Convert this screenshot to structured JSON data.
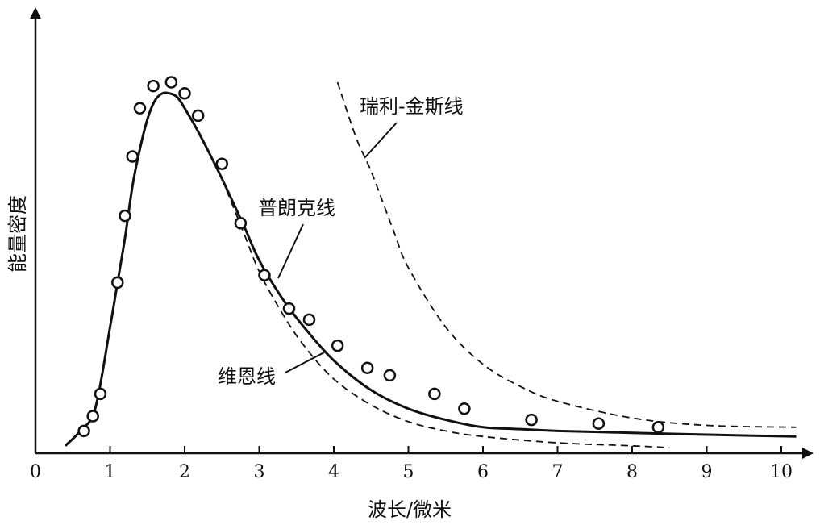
{
  "chart_data": {
    "type": "line",
    "xlabel": "波长/微米",
    "ylabel": "能量密度",
    "xlim": [
      0,
      10.5
    ],
    "ylim": [
      0,
      1.05
    ],
    "x_ticks": [
      "0",
      "1",
      "2",
      "3",
      "4",
      "5",
      "6",
      "7",
      "8",
      "9",
      "10"
    ],
    "grid": false,
    "legend": "none",
    "annotations": [
      {
        "text": "瑞利-金斯线",
        "target_series": 2
      },
      {
        "text": "普朗克线",
        "target_series": 0
      },
      {
        "text": "维恩线",
        "target_series": 1
      }
    ],
    "series": [
      {
        "name": "普朗克线",
        "style": "solid",
        "x": [
          0.4,
          0.6,
          0.8,
          1.0,
          1.1,
          1.2,
          1.3,
          1.4,
          1.5,
          1.6,
          1.7,
          1.8,
          1.9,
          2.0,
          2.2,
          2.5,
          2.8,
          3.0,
          3.3,
          3.6,
          4.0,
          4.5,
          5.0,
          5.5,
          6.0,
          6.5,
          7.0,
          8.0,
          9.0,
          10.2
        ],
        "y": [
          0.02,
          0.06,
          0.12,
          0.34,
          0.46,
          0.58,
          0.72,
          0.82,
          0.9,
          0.95,
          0.97,
          0.97,
          0.96,
          0.93,
          0.86,
          0.74,
          0.61,
          0.52,
          0.42,
          0.34,
          0.25,
          0.17,
          0.12,
          0.09,
          0.07,
          0.065,
          0.06,
          0.055,
          0.05,
          0.045
        ]
      },
      {
        "name": "维恩线",
        "style": "dashed",
        "x": [
          2.5,
          2.8,
          3.0,
          3.3,
          3.6,
          4.0,
          4.5,
          5.0,
          5.5,
          6.0,
          7.0,
          8.0,
          8.5
        ],
        "y": [
          0.74,
          0.59,
          0.49,
          0.38,
          0.29,
          0.2,
          0.13,
          0.085,
          0.06,
          0.045,
          0.028,
          0.02,
          0.015
        ]
      },
      {
        "name": "瑞利-金斯线",
        "style": "dashed",
        "x": [
          4.05,
          4.3,
          4.5,
          4.8,
          5.0,
          5.5,
          6.0,
          6.5,
          7.0,
          8.0,
          9.0,
          10.2
        ],
        "y": [
          1.0,
          0.85,
          0.76,
          0.6,
          0.5,
          0.34,
          0.24,
          0.18,
          0.14,
          0.095,
          0.075,
          0.07
        ]
      },
      {
        "name": "",
        "style": "markers",
        "x": [
          0.65,
          0.77,
          0.87,
          1.1,
          1.2,
          1.3,
          1.4,
          1.58,
          1.82,
          2.0,
          2.18,
          2.5,
          2.75,
          3.07,
          3.4,
          3.67,
          4.05,
          4.45,
          4.75,
          5.35,
          5.75,
          6.65,
          7.55,
          8.35
        ],
        "y": [
          0.06,
          0.1,
          0.16,
          0.46,
          0.64,
          0.8,
          0.93,
          0.99,
          1.0,
          0.97,
          0.91,
          0.78,
          0.62,
          0.48,
          0.39,
          0.36,
          0.29,
          0.23,
          0.21,
          0.16,
          0.12,
          0.09,
          0.08,
          0.07
        ]
      }
    ]
  }
}
